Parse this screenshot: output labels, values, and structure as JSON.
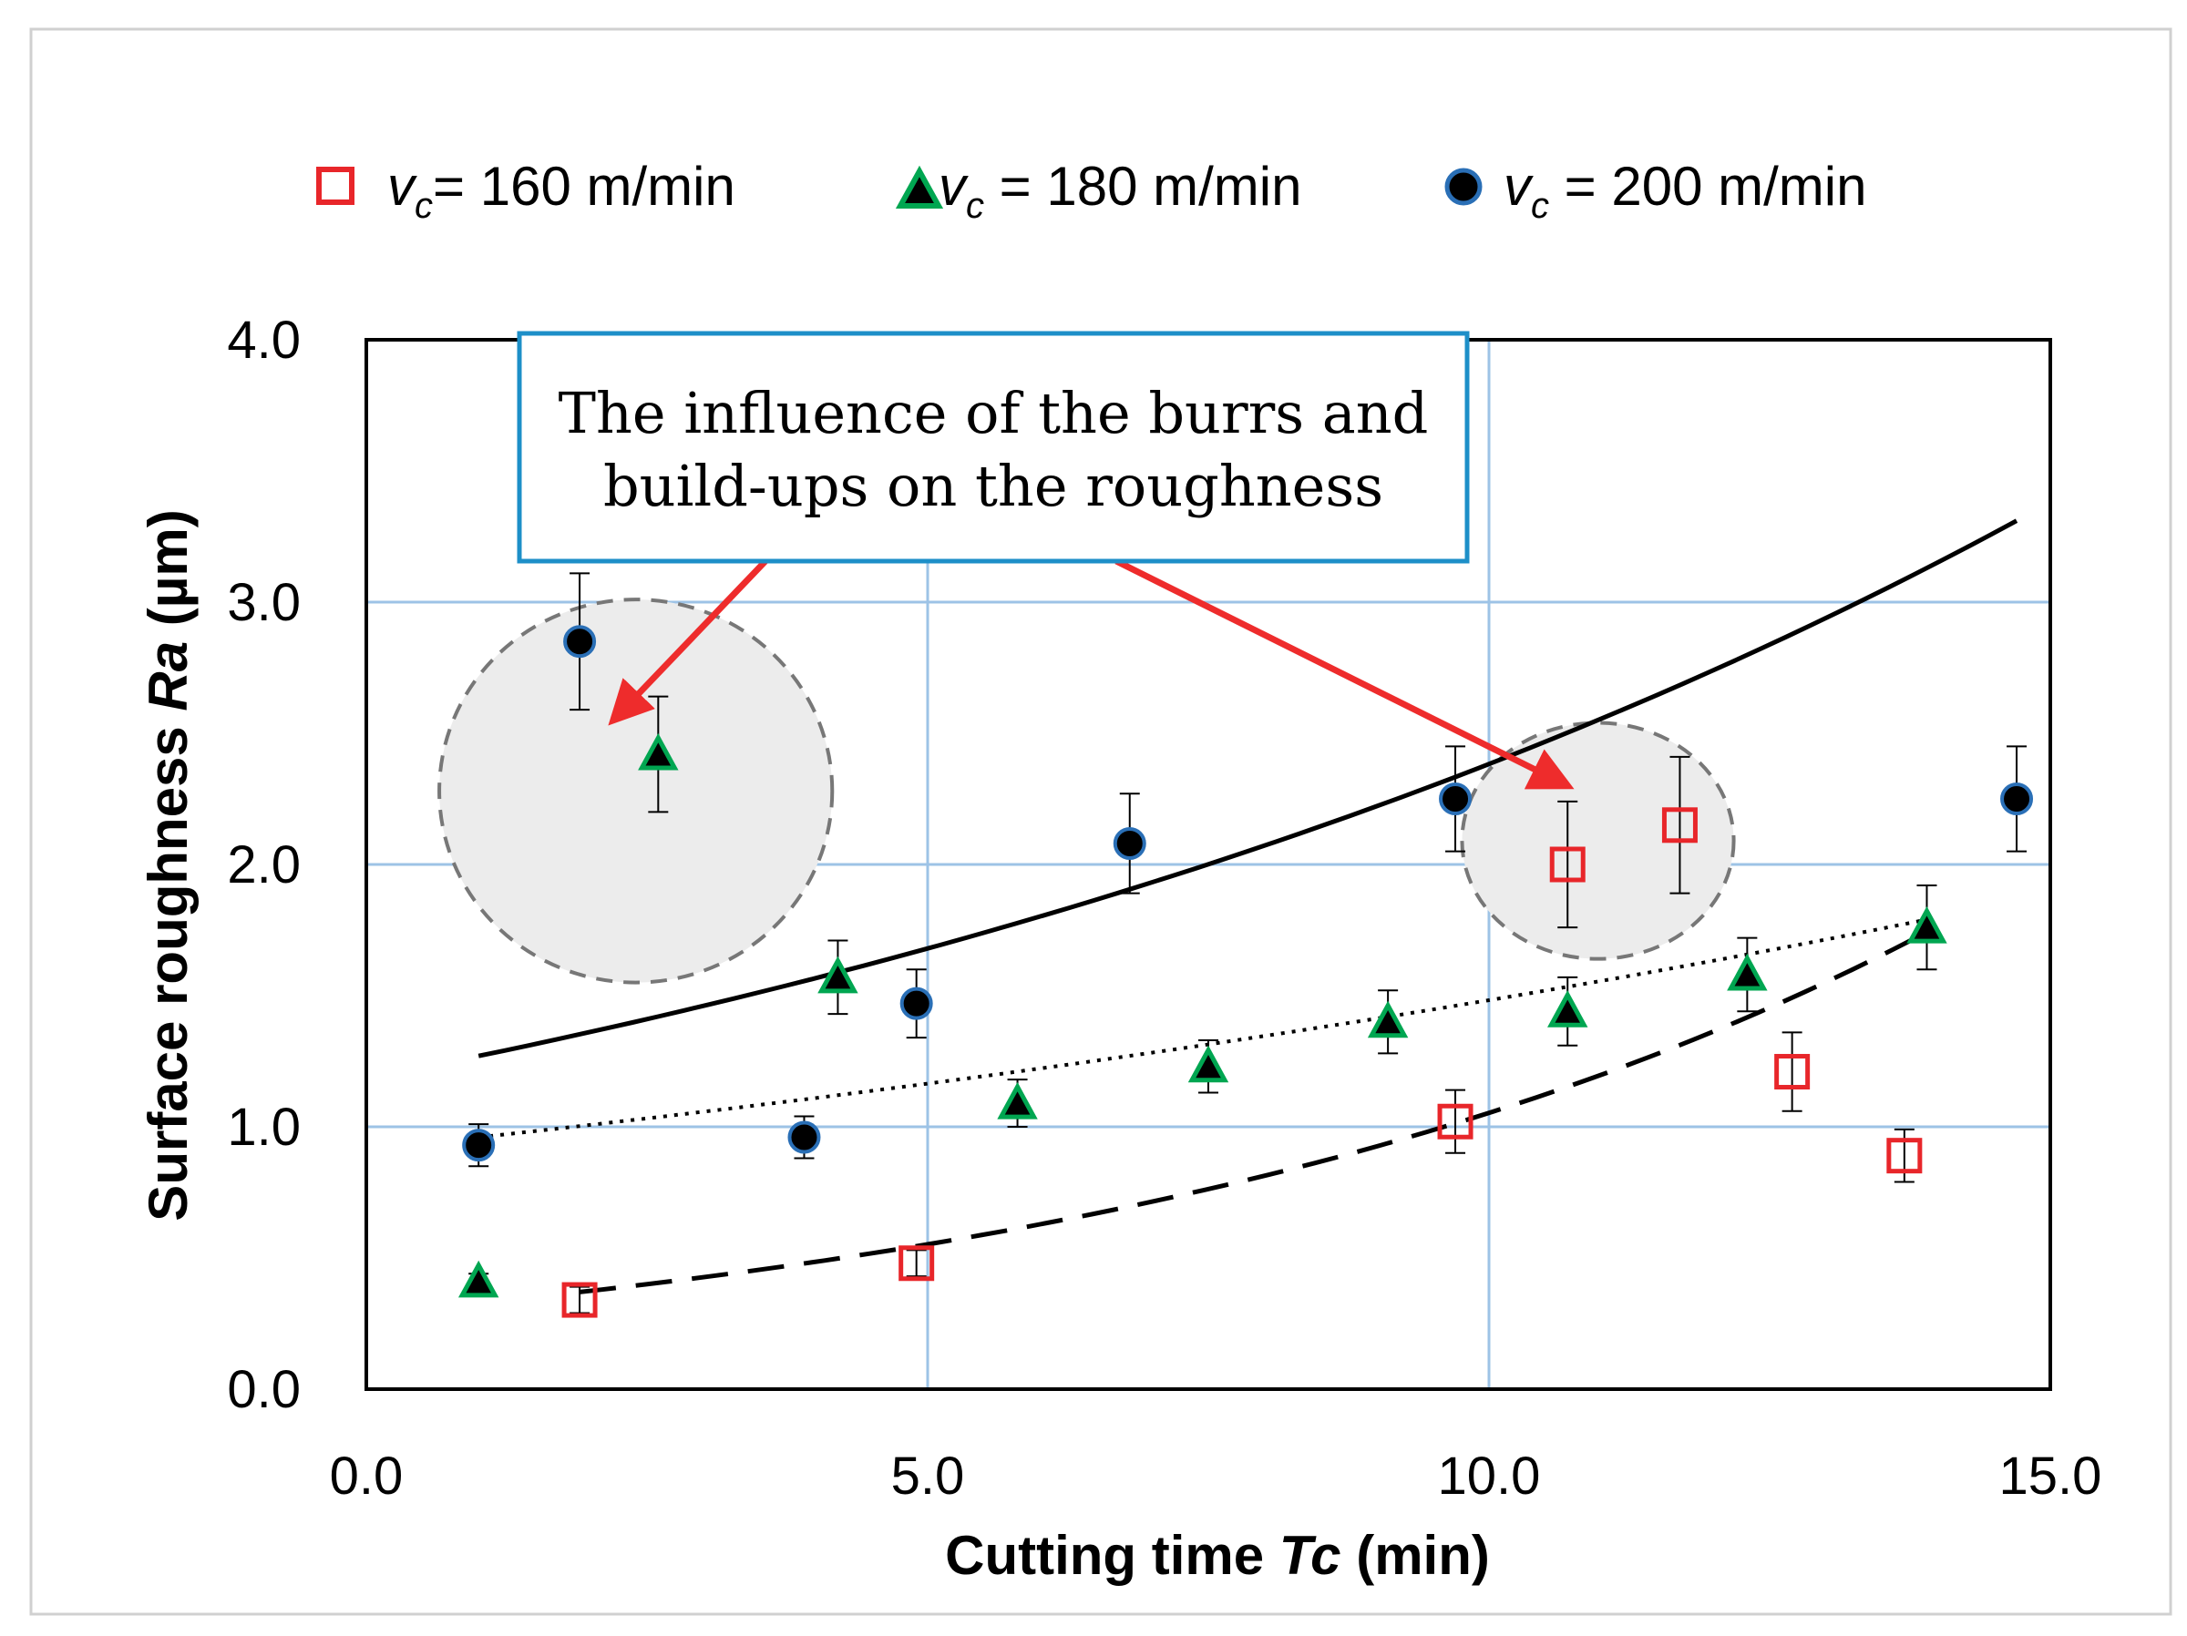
{
  "chart_data": {
    "type": "scatter",
    "xlabel_pre": "Cutting time ",
    "xlabel_var": "Tc",
    "xlabel_post": " (min)",
    "ylabel_pre": "Surface roughness ",
    "ylabel_var": "Ra",
    "ylabel_post": " (µm)",
    "xlim": [
      0,
      15
    ],
    "ylim": [
      0,
      4
    ],
    "xticks": [
      "0.0",
      "5.0",
      "10.0",
      "15.0"
    ],
    "yticks": [
      "0.0",
      "1.0",
      "2.0",
      "3.0",
      "4.0"
    ],
    "grid": true,
    "legend_position": "top",
    "series": [
      {
        "name": "vc = 160 m/min",
        "label_var": "v",
        "label_sub": "c",
        "label_rest": "= 160 m/min",
        "marker": "square-open",
        "color": "#e8262a",
        "x": [
          1.9,
          4.9,
          9.7,
          10.7,
          11.7,
          12.7,
          13.7
        ],
        "y": [
          0.34,
          0.48,
          1.02,
          2.0,
          2.15,
          1.21,
          0.89
        ],
        "err": [
          0.05,
          0.05,
          0.12,
          0.24,
          0.26,
          0.15,
          0.1
        ],
        "trend": "dashed",
        "trend_x": [
          1.9,
          13.8
        ],
        "trend_y": [
          0.37,
          1.72
        ]
      },
      {
        "name": "vc = 180 m/min",
        "label_var": "v",
        "label_sub": "c",
        "label_rest": " = 180 m/min",
        "marker": "triangle",
        "color": "#00a651",
        "x": [
          1.0,
          2.6,
          4.2,
          5.8,
          7.5,
          9.1,
          10.7,
          12.3,
          13.9
        ],
        "y": [
          0.41,
          2.42,
          1.57,
          1.09,
          1.23,
          1.4,
          1.44,
          1.58,
          1.76
        ],
        "err": [
          0.03,
          0.22,
          0.14,
          0.09,
          0.1,
          0.12,
          0.13,
          0.14,
          0.16
        ],
        "trend": "dotted",
        "trend_x": [
          1.0,
          13.9
        ],
        "trend_y": [
          0.96,
          1.79
        ]
      },
      {
        "name": "vc = 200 m/min",
        "label_var": "v",
        "label_sub": "c",
        "label_rest": " = 200 m/min",
        "marker": "circle",
        "color": "#2a6fb6",
        "x": [
          1.0,
          1.9,
          3.9,
          4.9,
          6.8,
          9.7,
          14.7
        ],
        "y": [
          0.93,
          2.85,
          0.96,
          1.47,
          2.08,
          2.25,
          2.25
        ],
        "err": [
          0.08,
          0.26,
          0.08,
          0.13,
          0.19,
          0.2,
          0.2
        ],
        "trend": "solid",
        "trend_x": [
          1.0,
          14.7
        ],
        "trend_y": [
          1.27,
          3.31
        ]
      }
    ],
    "highlights": [
      {
        "cx": 2.4,
        "cy": 2.28,
        "rx": 1.75,
        "ry": 0.73
      },
      {
        "cx": 10.97,
        "cy": 2.09,
        "rx": 1.21,
        "ry": 0.45
      }
    ],
    "annotation": {
      "line1": "The influence of the burrs and",
      "line2": "build-ups on the roughness",
      "border_color": "#1d8fc8",
      "arrow_color": "#ee2c2c",
      "arrow_targets": [
        [
          2.2,
          2.55
        ],
        [
          10.7,
          2.3
        ]
      ]
    }
  }
}
